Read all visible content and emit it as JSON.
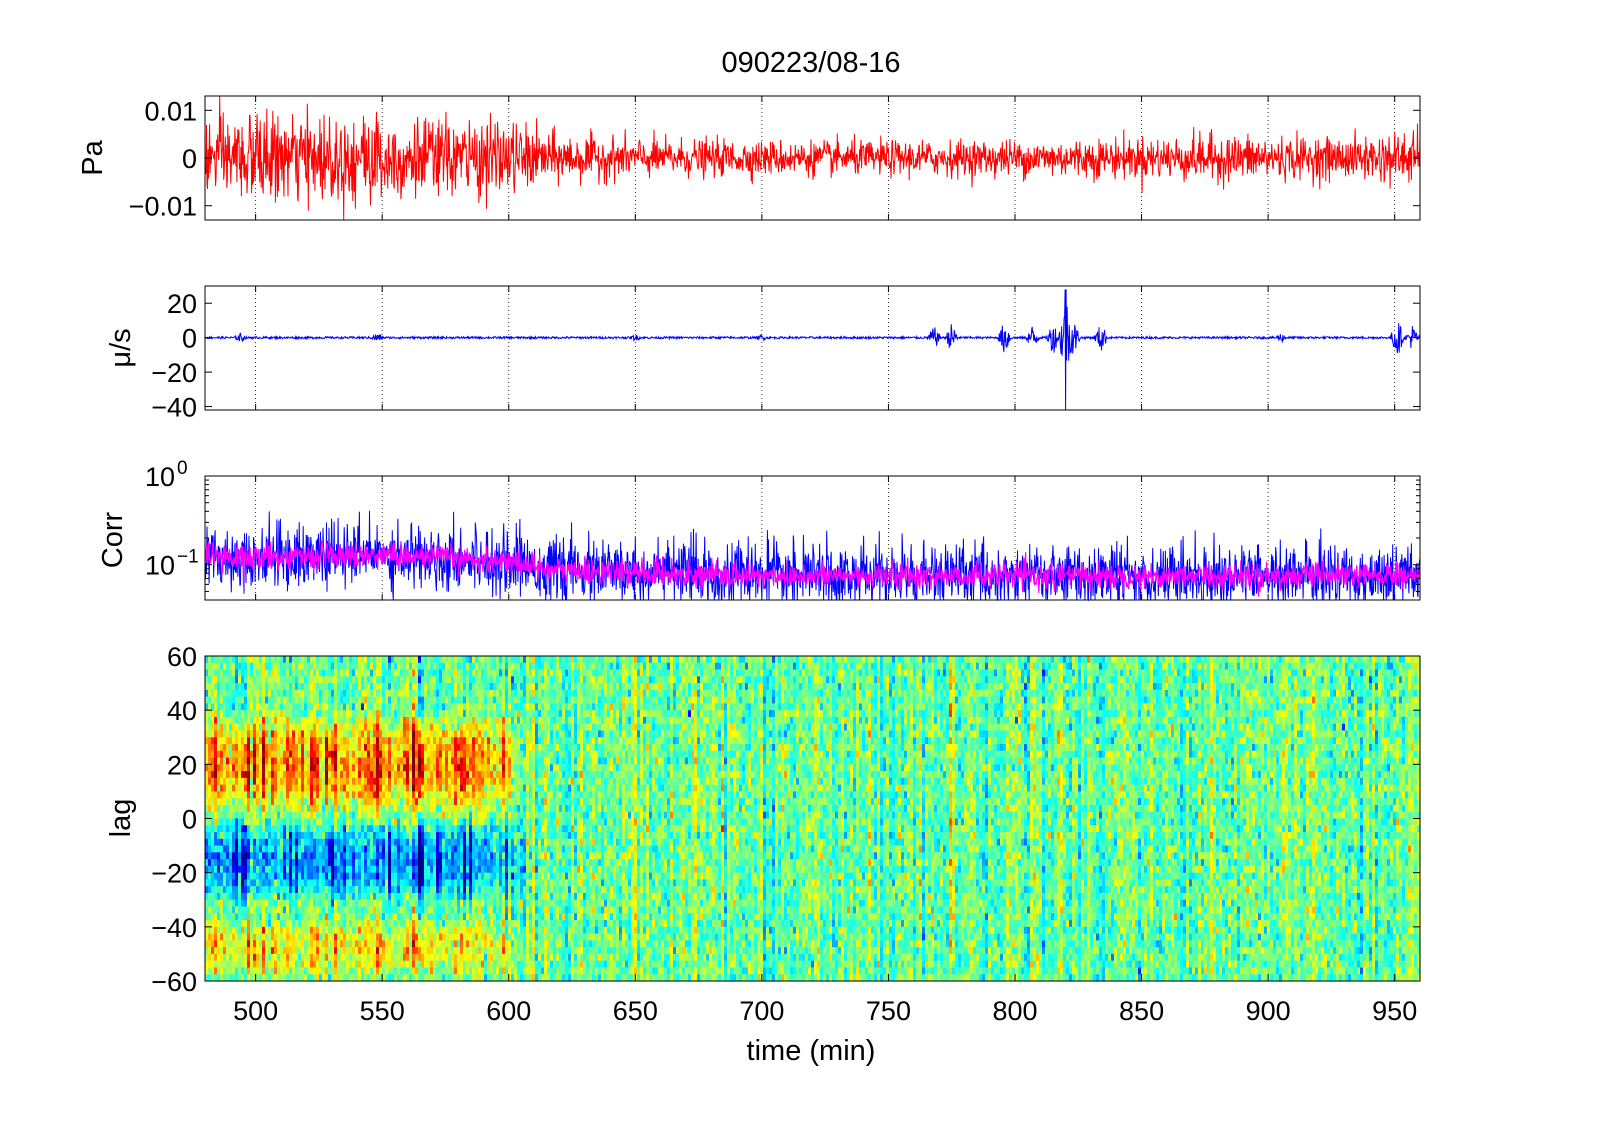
{
  "chart_data": {
    "title": "090223/08-16",
    "xlabel": "time (min)",
    "xlim": [
      480,
      960
    ],
    "x_ticks": [
      500,
      550,
      600,
      650,
      700,
      750,
      800,
      850,
      900,
      950
    ],
    "x_tick_labels": [
      "500",
      "550",
      "600",
      "650",
      "700",
      "750",
      "800",
      "850",
      "900",
      "950"
    ],
    "grid": "vertical dotted lines at x ticks (top three panels)",
    "panels": [
      {
        "id": "pressure",
        "type": "line",
        "ylabel": "Pa",
        "ylim": [
          -0.013,
          0.013
        ],
        "y_ticks": [
          -0.01,
          0,
          0.01
        ],
        "y_tick_labels": [
          "−0.01",
          "0",
          "0.01"
        ],
        "series": [
          {
            "color": "#ff0000",
            "envelope_x": [
              480,
              500,
              520,
              540,
              560,
              580,
              600,
              610,
              620,
              650,
              700,
              750,
              800,
              850,
              880,
              900,
              930,
              960
            ],
            "envelope_amplitude": [
              0.0095,
              0.01,
              0.0095,
              0.0115,
              0.0095,
              0.009,
              0.0085,
              0.007,
              0.0055,
              0.0045,
              0.004,
              0.004,
              0.0042,
              0.0048,
              0.0055,
              0.005,
              0.0048,
              0.0065
            ]
          }
        ]
      },
      {
        "id": "velocity",
        "type": "line",
        "ylabel": "μ/s",
        "ylim": [
          -42,
          30
        ],
        "y_ticks": [
          -40,
          -20,
          0,
          20
        ],
        "y_tick_labels": [
          "−40",
          "−20",
          "0",
          "20"
        ],
        "series": [
          {
            "color": "#0000ff",
            "baseline_amplitude": 0.6,
            "bursts": [
              {
                "x": 494,
                "amp": 3
              },
              {
                "x": 548,
                "amp": 3
              },
              {
                "x": 650,
                "amp": 2
              },
              {
                "x": 700,
                "amp": 2
              },
              {
                "x": 768,
                "amp": 7
              },
              {
                "x": 775,
                "amp": 9
              },
              {
                "x": 796,
                "amp": 11
              },
              {
                "x": 807,
                "amp": 8
              },
              {
                "x": 815,
                "amp": 10
              },
              {
                "x": 820,
                "amp": 28,
                "min": -42
              },
              {
                "x": 823,
                "amp": 12
              },
              {
                "x": 834,
                "amp": 9
              },
              {
                "x": 905,
                "amp": 3
              },
              {
                "x": 951,
                "amp": 12
              },
              {
                "x": 957,
                "amp": 8
              }
            ]
          }
        ]
      },
      {
        "id": "correlation",
        "type": "line",
        "y_scale": "log",
        "ylabel": "Corr",
        "ylim": [
          0.04,
          1.0
        ],
        "y_ticks": [
          0.1,
          1.0
        ],
        "y_tick_labels": [
          {
            "base": "10",
            "exp": "−1"
          },
          {
            "base": "10",
            "exp": "0"
          }
        ],
        "series": [
          {
            "color": "#0000ff",
            "center_x": [
              480,
              550,
              600,
              620,
              700,
              800,
              900,
              960
            ],
            "center_y": [
              0.12,
              0.13,
              0.11,
              0.085,
              0.075,
              0.075,
              0.075,
              0.075
            ]
          },
          {
            "color": "#ff00ff",
            "center_x": [
              480,
              550,
              600,
              620,
              700,
              800,
              900,
              960
            ],
            "center_y": [
              0.12,
              0.13,
              0.11,
              0.085,
              0.075,
              0.075,
              0.075,
              0.075
            ]
          }
        ]
      },
      {
        "id": "lag",
        "type": "heatmap",
        "ylabel": "lag",
        "ylim": [
          -60,
          60
        ],
        "y_ticks": [
          -60,
          -40,
          -20,
          0,
          20,
          40,
          60
        ],
        "y_tick_labels": [
          "−60",
          "−40",
          "−20",
          "0",
          "20",
          "40",
          "60"
        ],
        "colormap": "jet",
        "colormap_stops": [
          "#00008f",
          "#0000ff",
          "#0080ff",
          "#00ffff",
          "#80ff80",
          "#ffff00",
          "#ff8000",
          "#ff0000",
          "#800000"
        ],
        "pattern": "strong positive-lag band (orange/red, lag 0 to 40) and negative-lag band (blue, lag -30 to 0) from 480 to 610 min; near-uniform cyan-green-yellow noise after 610 min"
      }
    ]
  }
}
